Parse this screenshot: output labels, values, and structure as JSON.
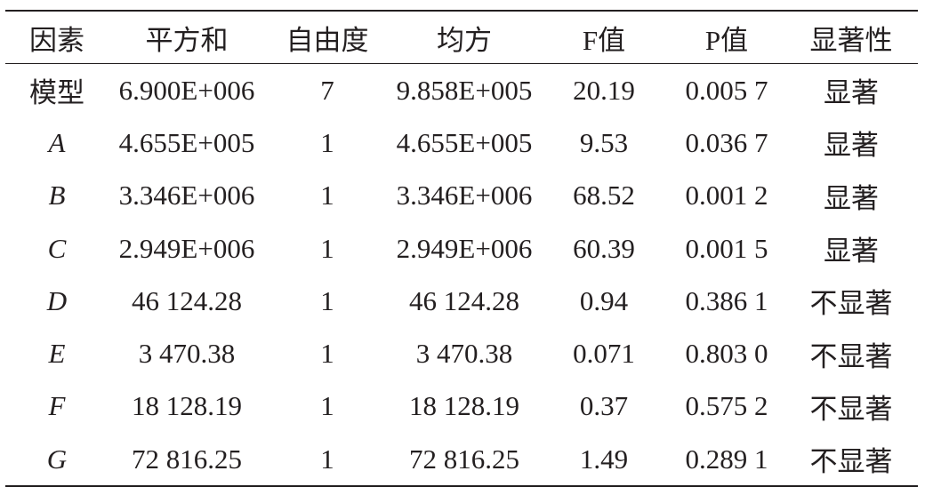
{
  "table": {
    "header": [
      "因素",
      "平方和",
      "自由度",
      "均方",
      "F值",
      "P值",
      "显著性"
    ],
    "rows": [
      [
        "模型",
        "6.900E+006",
        "7",
        "9.858E+005",
        "20.19",
        "0.005 7",
        "显著"
      ],
      [
        "A",
        "4.655E+005",
        "1",
        "4.655E+005",
        "9.53",
        "0.036 7",
        "显著"
      ],
      [
        "B",
        "3.346E+006",
        "1",
        "3.346E+006",
        "68.52",
        "0.001 2",
        "显著"
      ],
      [
        "C",
        "2.949E+006",
        "1",
        "2.949E+006",
        "60.39",
        "0.001 5",
        "显著"
      ],
      [
        "D",
        "46 124.28",
        "1",
        "46 124.28",
        "0.94",
        "0.386 1",
        "不显著"
      ],
      [
        "E",
        "3 470.38",
        "1",
        "3 470.38",
        "0.071",
        "0.803 0",
        "不显著"
      ],
      [
        "F",
        "18 128.19",
        "1",
        "18 128.19",
        "0.37",
        "0.575 2",
        "不显著"
      ],
      [
        "G",
        "72 816.25",
        "1",
        "72 816.25",
        "1.49",
        "0.289 1",
        "不显著"
      ]
    ]
  }
}
